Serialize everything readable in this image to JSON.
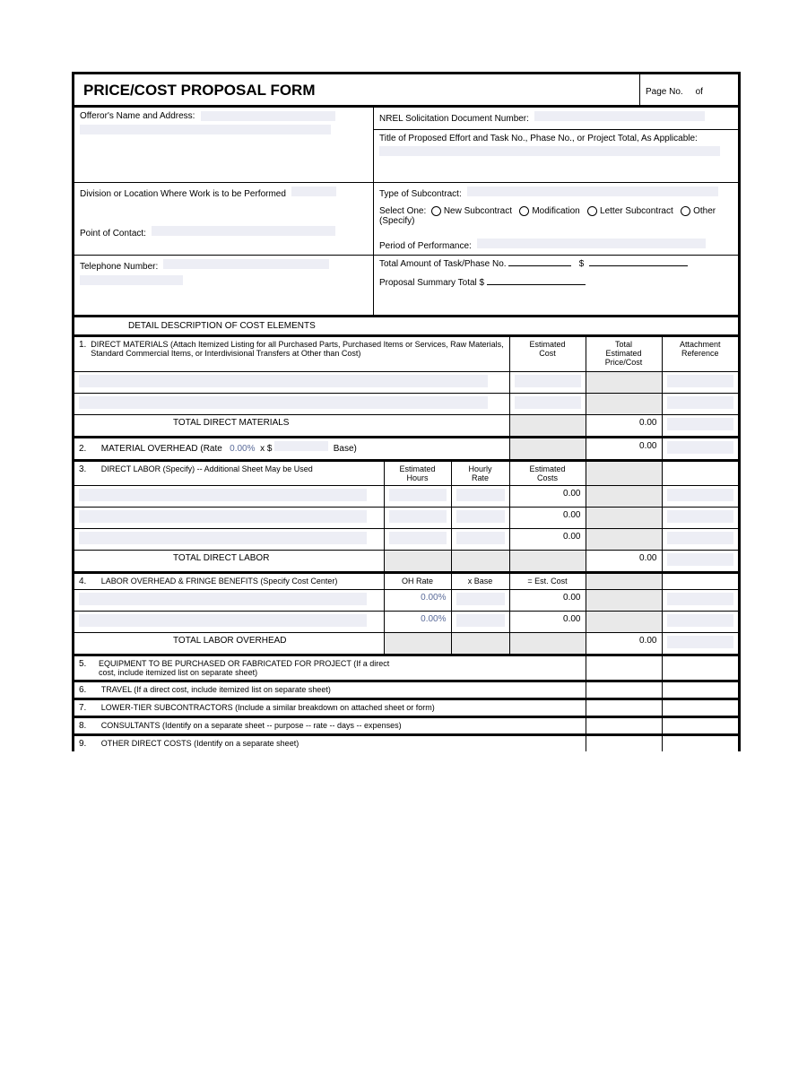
{
  "form": {
    "title": "PRICE/COST PROPOSAL FORM",
    "page_label": "Page No.",
    "page_of": "of",
    "header": {
      "offeror_label": "Offeror's Name and Address:",
      "nrel_label": "NREL Solicitation Document Number:",
      "title_effort_label": "Title of Proposed Effort and Task No., Phase No., or Project Total, As Applicable:",
      "division_label": "Division or Location Where Work is to be Performed",
      "poc_label": "Point of Contact:",
      "type_sub_label": "Type of Subcontract:",
      "select_one": "Select One:",
      "opt_new": "New Subcontract",
      "opt_mod": "Modification",
      "opt_letter": "Letter Subcontract",
      "opt_other": "Other (Specify)",
      "period_label": "Period of Performance:",
      "tel_label": "Telephone Number:",
      "total_task_label": "Total Amount of Task/Phase No.",
      "dollar": "$",
      "proposal_summary_label": "Proposal Summary Total  $"
    },
    "detail_header": "DETAIL DESCRIPTION OF COST ELEMENTS",
    "col": {
      "est_hours": "Estimated\nHours",
      "hourly_rate": "Hourly\nRate",
      "est_cost": "Estimated\nCost",
      "est_cost_hdr": "Estimated\nCost",
      "est_costs": "Estimated\nCosts",
      "total_pc": "Total\nEstimated\nPrice/Cost",
      "attach_ref": "Attachment\nReference",
      "oh_rate": "OH Rate",
      "x_base": "x Base",
      "eq_est_cost": "= Est. Cost"
    },
    "sec1": {
      "num": "1.",
      "text": "DIRECT MATERIALS (Attach Itemized Listing for all Purchased Parts, Purchased Items or Services, Raw Materials, Standard Commercial Items, or Interdivisional Transfers at Other than Cost)",
      "total_label": "TOTAL DIRECT MATERIALS",
      "total_value": "0.00"
    },
    "sec2": {
      "num": "2.",
      "text": "MATERIAL OVERHEAD (Rate",
      "rate": "0.00%",
      "x": "x  $",
      "base": "Base)",
      "value": "0.00"
    },
    "sec3": {
      "num": "3.",
      "text": "DIRECT LABOR (Specify) -- Additional Sheet May be Used",
      "rows": [
        "0.00",
        "0.00",
        "0.00"
      ],
      "total_label": "TOTAL DIRECT LABOR",
      "total_value": "0.00"
    },
    "sec4": {
      "num": "4.",
      "text": "LABOR OVERHEAD & FRINGE BENEFITS (Specify Cost Center)",
      "rate1": "0.00%",
      "rate2": "0.00%",
      "cost1": "0.00",
      "cost2": "0.00",
      "total_label": "TOTAL LABOR OVERHEAD",
      "total_value": "0.00"
    },
    "sec5": {
      "num": "5.",
      "text": "EQUIPMENT TO BE PURCHASED OR FABRICATED FOR PROJECT (If a direct cost, include itemized list on separate sheet)"
    },
    "sec6": {
      "num": "6.",
      "text": "TRAVEL (If a direct cost, include itemized list on separate sheet)"
    },
    "sec7": {
      "num": "7.",
      "text": "LOWER-TIER SUBCONTRACTORS (Include a similar breakdown on attached sheet or form)"
    },
    "sec8": {
      "num": "8.",
      "text": "CONSULTANTS (Identify on a separate sheet -- purpose -- rate -- days -- expenses)"
    },
    "sec9": {
      "num": "9.",
      "text": "OTHER DIRECT COSTS (Identify on a separate sheet)"
    }
  },
  "style": {
    "field_bg": "#edeef5",
    "grey_bg": "#e9e9e9",
    "border_color": "#000000",
    "font_size_body": 10,
    "font_size_title": 17
  }
}
